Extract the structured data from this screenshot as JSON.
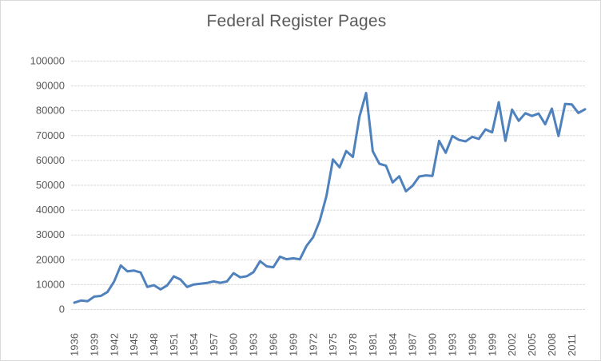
{
  "chart_data": {
    "type": "line",
    "title": "Federal Register Pages",
    "xlabel": "",
    "ylabel": "",
    "ylim": [
      0,
      100000
    ],
    "grid": true,
    "legend": "none",
    "years": [
      1936,
      1937,
      1938,
      1939,
      1940,
      1941,
      1942,
      1943,
      1944,
      1945,
      1946,
      1947,
      1948,
      1949,
      1950,
      1951,
      1952,
      1953,
      1954,
      1955,
      1956,
      1957,
      1958,
      1959,
      1960,
      1961,
      1962,
      1963,
      1964,
      1965,
      1966,
      1967,
      1968,
      1969,
      1970,
      1971,
      1972,
      1973,
      1974,
      1975,
      1976,
      1977,
      1978,
      1979,
      1980,
      1981,
      1982,
      1983,
      1984,
      1985,
      1986,
      1987,
      1988,
      1989,
      1990,
      1991,
      1992,
      1993,
      1994,
      1995,
      1996,
      1997,
      1998,
      1999,
      2000,
      2001,
      2002,
      2003,
      2004,
      2005,
      2006,
      2007,
      2008,
      2009,
      2010,
      2011,
      2012,
      2013
    ],
    "values": [
      2620,
      3450,
      3194,
      5007,
      5307,
      6877,
      11134,
      17553,
      15194,
      15508,
      14736,
      8902,
      9608,
      7952,
      9562,
      13175,
      11896,
      8912,
      9910,
      10196,
      10528,
      11156,
      10579,
      11116,
      14479,
      12792,
      13226,
      14842,
      19304,
      17206,
      16850,
      21088,
      20072,
      20466,
      20036,
      25447,
      28924,
      35592,
      45422,
      60221,
      57072,
      63629,
      61261,
      77498,
      87012,
      63554,
      58494,
      57704,
      50998,
      53480,
      47418,
      49654,
      53376,
      53842,
      53620,
      67716,
      62928,
      69688,
      68108,
      67518,
      69368,
      68530,
      72356,
      71161,
      83294,
      67702,
      80332,
      75798,
      78852,
      77752,
      78724,
      74408,
      80700,
      69676,
      82590,
      82419,
      78961,
      80462
    ],
    "series": [
      {
        "name": "Federal Register Pages",
        "color": "#4F81BD"
      }
    ],
    "yticks": [
      0,
      10000,
      20000,
      30000,
      40000,
      50000,
      60000,
      70000,
      80000,
      90000,
      100000
    ],
    "yticklabels": [
      "0",
      "10000",
      "20000",
      "30000",
      "40000",
      "50000",
      "60000",
      "70000",
      "80000",
      "90000",
      "100000"
    ],
    "xticklabels": [
      "1936",
      "1939",
      "1942",
      "1945",
      "1948",
      "1951",
      "1954",
      "1957",
      "1960",
      "1963",
      "1966",
      "1969",
      "1972",
      "1975",
      "1978",
      "1981",
      "1984",
      "1987",
      "1990",
      "1993",
      "1996",
      "1999",
      "2002",
      "2005",
      "2008",
      "2011"
    ],
    "colors": {
      "line": "#4F81BD",
      "gridline": "#D9D9D9",
      "tick_label": "#595959",
      "title": "#595959",
      "background": "#FFFFFF",
      "border": "#D9D9D9"
    }
  }
}
